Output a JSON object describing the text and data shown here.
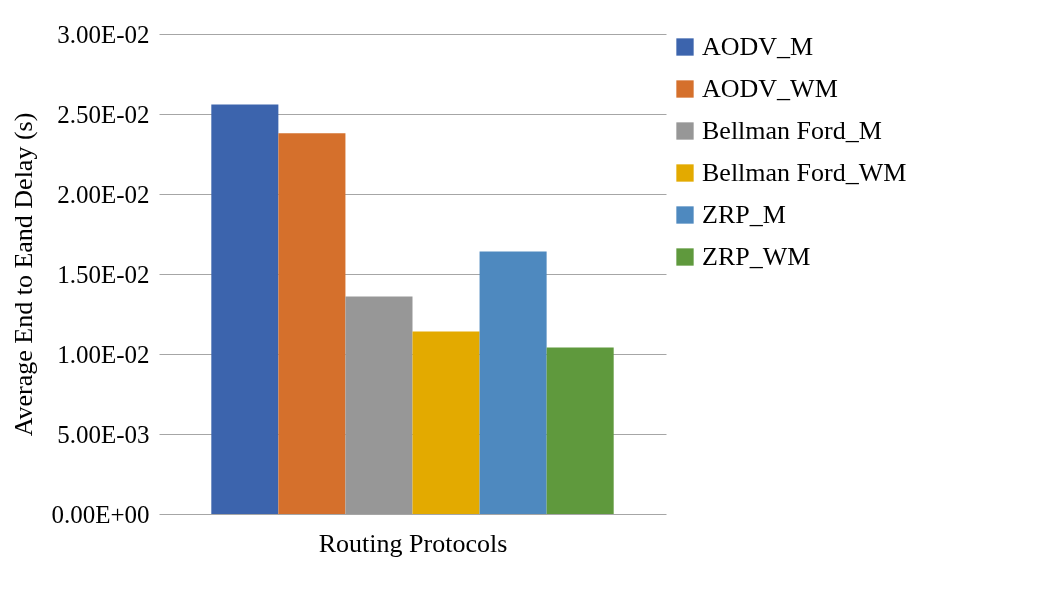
{
  "chart_data": {
    "type": "bar",
    "xlabel": "Routing Protocols",
    "ylabel": "Average End to Eand Delay (s)",
    "categories": [
      null
    ],
    "series": [
      {
        "name": "AODV_M",
        "color": "#3c64ad",
        "values": [
          0.0256
        ]
      },
      {
        "name": "AODV_WM",
        "color": "#d5702c",
        "values": [
          0.0238
        ]
      },
      {
        "name": "Bellman Ford_M",
        "color": "#979797",
        "values": [
          0.0136
        ]
      },
      {
        "name": "Bellman Ford_WM",
        "color": "#e3aa00",
        "values": [
          0.0114
        ]
      },
      {
        "name": "ZRP_M",
        "color": "#4e89bf",
        "values": [
          0.0164
        ]
      },
      {
        "name": "ZRP_WM",
        "color": "#5f993d",
        "values": [
          0.0104
        ]
      }
    ],
    "ylim": [
      0,
      0.03
    ],
    "yticks": [
      {
        "value": 0,
        "label": "0.00E+00"
      },
      {
        "value": 0.005,
        "label": "5.00E-03"
      },
      {
        "value": 0.01,
        "label": "1.00E-02"
      },
      {
        "value": 0.015,
        "label": "1.50E-02"
      },
      {
        "value": 0.02,
        "label": "2.00E-02"
      },
      {
        "value": 0.025,
        "label": "2.50E-02"
      },
      {
        "value": 0.03,
        "label": "3.00E-02"
      }
    ],
    "grid": "y",
    "legend": "right"
  }
}
